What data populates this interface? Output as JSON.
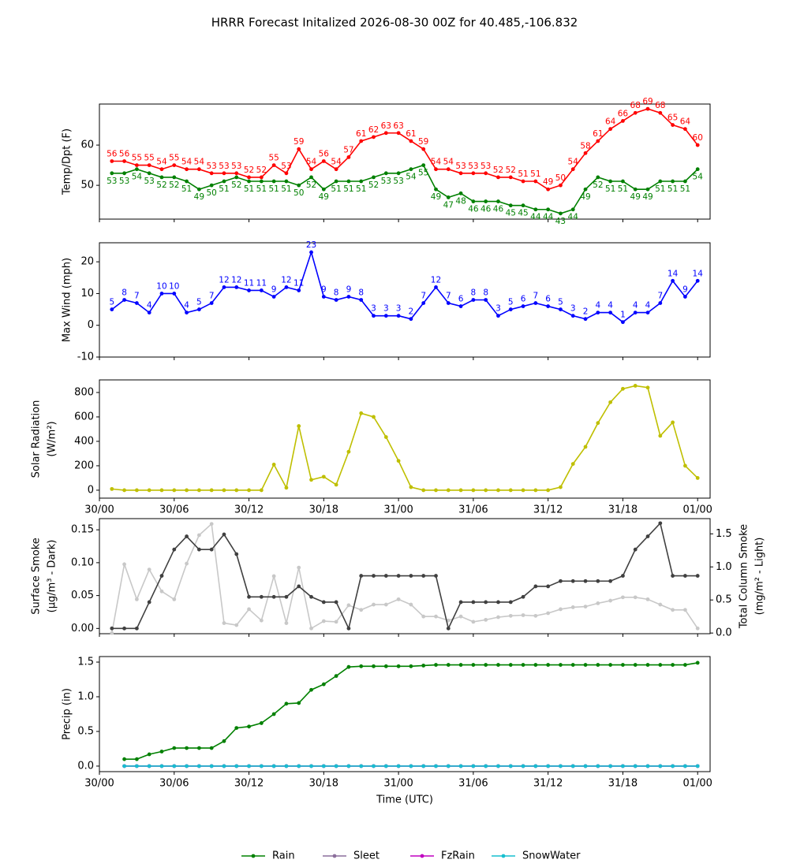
{
  "title": "HRRR Forecast Initalized 2026-08-30 00Z for 40.485,-106.832",
  "chart_data": [
    {
      "type": "line",
      "ylabel": [
        "Temp/Dpt (F)"
      ],
      "x": [
        1,
        2,
        3,
        4,
        5,
        6,
        7,
        8,
        9,
        10,
        11,
        12,
        13,
        14,
        15,
        16,
        17,
        18,
        19,
        20,
        21,
        22,
        23,
        24,
        25,
        26,
        27,
        28,
        29,
        30,
        31,
        32,
        33,
        34,
        35,
        36,
        37,
        38,
        39,
        40,
        41,
        42,
        43,
        44,
        45,
        46,
        47,
        48
      ],
      "xlim": [
        0,
        49
      ],
      "xticks": [
        0,
        6,
        12,
        18,
        24,
        30,
        36,
        42,
        48
      ],
      "ylim": [
        41.6,
        70.2
      ],
      "yticks": [
        50,
        60
      ],
      "series": [
        {
          "color": "#ff0000",
          "data_labels": "above",
          "values": [
            56,
            56,
            55,
            55,
            54,
            55,
            54,
            54,
            53,
            53,
            53,
            52,
            52,
            55,
            53,
            59,
            54,
            56,
            54,
            57,
            61,
            62,
            63,
            63,
            61,
            59,
            54,
            54,
            53,
            53,
            53,
            52,
            52,
            51,
            51,
            49,
            50,
            54,
            58,
            61,
            64,
            66,
            68,
            69,
            68,
            65,
            64,
            60
          ]
        },
        {
          "color": "#008000",
          "data_labels": "below",
          "values": [
            53,
            53,
            54,
            53,
            52,
            52,
            51,
            49,
            50,
            51,
            52,
            51,
            51,
            51,
            51,
            50,
            52,
            49,
            51,
            51,
            51,
            52,
            53,
            53,
            54,
            55,
            49,
            47,
            48,
            46,
            46,
            46,
            45,
            45,
            44,
            44,
            43,
            44,
            49,
            52,
            51,
            51,
            49,
            49,
            51,
            51,
            51,
            54
          ]
        }
      ]
    },
    {
      "type": "line",
      "ylabel": [
        "Max Wind (mph)"
      ],
      "x": [
        1,
        2,
        3,
        4,
        5,
        6,
        7,
        8,
        9,
        10,
        11,
        12,
        13,
        14,
        15,
        16,
        17,
        18,
        19,
        20,
        21,
        22,
        23,
        24,
        25,
        26,
        27,
        28,
        29,
        30,
        31,
        32,
        33,
        34,
        35,
        36,
        37,
        38,
        39,
        40,
        41,
        42,
        43,
        44,
        45,
        46,
        47,
        48
      ],
      "xlim": [
        0,
        49
      ],
      "xticks": [
        0,
        6,
        12,
        18,
        24,
        30,
        36,
        42,
        48
      ],
      "ylim": [
        -10,
        26
      ],
      "yticks": [
        -10,
        0,
        10,
        20
      ],
      "series": [
        {
          "color": "#0000ff",
          "data_labels": "above",
          "values": [
            5,
            8,
            7,
            4,
            10,
            10,
            4,
            5,
            7,
            12,
            12,
            11,
            11,
            9,
            12,
            11,
            23,
            9,
            8,
            9,
            8,
            3,
            3,
            3,
            2,
            7,
            12,
            7,
            6,
            8,
            8,
            3,
            5,
            6,
            7,
            6,
            5,
            3,
            2,
            4,
            4,
            1,
            4,
            4,
            7,
            14,
            9,
            14
          ]
        }
      ]
    },
    {
      "type": "line",
      "ylabel": [
        "Solar Radiation",
        "(W/m²)"
      ],
      "x": [
        1,
        2,
        3,
        4,
        5,
        6,
        7,
        8,
        9,
        10,
        11,
        12,
        13,
        14,
        15,
        16,
        17,
        18,
        19,
        20,
        21,
        22,
        23,
        24,
        25,
        26,
        27,
        28,
        29,
        30,
        31,
        32,
        33,
        34,
        35,
        36,
        37,
        38,
        39,
        40,
        41,
        42,
        43,
        44,
        45,
        46,
        47,
        48
      ],
      "xlim": [
        0,
        49
      ],
      "xticks": [
        {
          "value": 0,
          "label": "30/00"
        },
        {
          "value": 6,
          "label": "30/06"
        },
        {
          "value": 12,
          "label": "30/12"
        },
        {
          "value": 18,
          "label": "30/18"
        },
        {
          "value": 24,
          "label": "31/00"
        },
        {
          "value": 30,
          "label": "31/06"
        },
        {
          "value": 36,
          "label": "31/12"
        },
        {
          "value": 42,
          "label": "31/18"
        },
        {
          "value": 48,
          "label": "01/00"
        }
      ],
      "ylim": [
        -65,
        903
      ],
      "yticks": [
        0,
        200,
        400,
        600,
        800
      ],
      "series": [
        {
          "color": "#bfbf00",
          "values": [
            10,
            0,
            0,
            0,
            0,
            0,
            0,
            0,
            0,
            0,
            0,
            0,
            0,
            210,
            20,
            525,
            85,
            110,
            45,
            315,
            630,
            600,
            435,
            240,
            25,
            0,
            0,
            0,
            0,
            0,
            0,
            0,
            0,
            0,
            0,
            0,
            25,
            215,
            355,
            550,
            720,
            830,
            855,
            840,
            445,
            555,
            200,
            100
          ]
        }
      ]
    },
    {
      "type": "line",
      "ylabel": [
        "Surface Smoke",
        "(μg/m³ - Dark)"
      ],
      "y2label": [
        "Total Column Smoke",
        "(mg/m² - Light)"
      ],
      "x": [
        1,
        2,
        3,
        4,
        5,
        6,
        7,
        8,
        9,
        10,
        11,
        12,
        13,
        14,
        15,
        16,
        17,
        18,
        19,
        20,
        21,
        22,
        23,
        24,
        25,
        26,
        27,
        28,
        29,
        30,
        31,
        32,
        33,
        34,
        35,
        36,
        37,
        38,
        39,
        40,
        41,
        42,
        43,
        44,
        45,
        46,
        47,
        48
      ],
      "xlim": [
        0,
        49
      ],
      "xticks": [
        0,
        6,
        12,
        18,
        24,
        30,
        36,
        42,
        48
      ],
      "ylim": [
        -0.008,
        0.167
      ],
      "yticks": [
        {
          "value": 0,
          "label": "0.00"
        },
        {
          "value": 0.05,
          "label": "0.05"
        },
        {
          "value": 0.1,
          "label": "0.10"
        },
        {
          "value": 0.15,
          "label": "0.15"
        }
      ],
      "y2lim": [
        -0.01,
        1.73
      ],
      "y2ticks": [
        {
          "value": 0,
          "label": "0.0"
        },
        {
          "value": 0.5,
          "label": "0.5"
        },
        {
          "value": 1,
          "label": "1.0"
        },
        {
          "value": 1.5,
          "label": "1.5"
        }
      ],
      "series": [
        {
          "color": "#c8c8c8",
          "axis": "y2",
          "values": [
            0,
            1.04,
            0.51,
            0.96,
            0.63,
            0.51,
            1.05,
            1.48,
            1.65,
            0.15,
            0.12,
            0.36,
            0.19,
            0.86,
            0.15,
            0.99,
            0.07,
            0.18,
            0.17,
            0.42,
            0.35,
            0.43,
            0.43,
            0.51,
            0.43,
            0.25,
            0.25,
            0.19,
            0.25,
            0.17,
            0.2,
            0.24,
            0.26,
            0.27,
            0.26,
            0.3,
            0.36,
            0.39,
            0.4,
            0.45,
            0.49,
            0.54,
            0.54,
            0.51,
            0.43,
            0.35,
            0.35,
            0.07
          ]
        },
        {
          "color": "#404040",
          "values": [
            0,
            0,
            0,
            0.04,
            0.08,
            0.12,
            0.14,
            0.12,
            0.12,
            0.143,
            0.113,
            0.048,
            0.048,
            0.048,
            0.048,
            0.064,
            0.048,
            0.04,
            0.04,
            0,
            0.08,
            0.08,
            0.08,
            0.08,
            0.08,
            0.08,
            0.08,
            0,
            0.04,
            0.04,
            0.04,
            0.04,
            0.04,
            0.048,
            0.064,
            0.064,
            0.072,
            0.072,
            0.072,
            0.072,
            0.072,
            0.08,
            0.12,
            0.14,
            0.16,
            0.08,
            0.08,
            0.08
          ]
        }
      ]
    },
    {
      "type": "line",
      "ylabel": [
        "Precip (in)"
      ],
      "xlabel": "Time (UTC)",
      "legend": "figure-bottom",
      "x": [
        1,
        2,
        3,
        4,
        5,
        6,
        7,
        8,
        9,
        10,
        11,
        12,
        13,
        14,
        15,
        16,
        17,
        18,
        19,
        20,
        21,
        22,
        23,
        24,
        25,
        26,
        27,
        28,
        29,
        30,
        31,
        32,
        33,
        34,
        35,
        36,
        37,
        38,
        39,
        40,
        41,
        42,
        43,
        44,
        45,
        46,
        47,
        48
      ],
      "xlim": [
        0,
        49
      ],
      "xticks": [
        {
          "value": 0,
          "label": "30/00"
        },
        {
          "value": 6,
          "label": "30/06"
        },
        {
          "value": 12,
          "label": "30/12"
        },
        {
          "value": 18,
          "label": "30/18"
        },
        {
          "value": 24,
          "label": "31/00"
        },
        {
          "value": 30,
          "label": "31/06"
        },
        {
          "value": 36,
          "label": "31/12"
        },
        {
          "value": 42,
          "label": "31/18"
        },
        {
          "value": 48,
          "label": "01/00"
        }
      ],
      "ylim": [
        -0.08,
        1.58
      ],
      "yticks": [
        {
          "value": 0,
          "label": "0.0"
        },
        {
          "value": 0.5,
          "label": "0.5"
        },
        {
          "value": 1,
          "label": "1.0"
        },
        {
          "value": 1.5,
          "label": "1.5"
        }
      ],
      "series": [
        {
          "name": "Rain",
          "color": "#008000",
          "values": [
            null,
            0.1,
            0.1,
            0.17,
            0.21,
            0.26,
            0.26,
            0.26,
            0.26,
            0.36,
            0.55,
            0.57,
            0.62,
            0.75,
            0.9,
            0.91,
            1.1,
            1.18,
            1.3,
            1.43,
            1.44,
            1.44,
            1.44,
            1.44,
            1.44,
            1.45,
            1.46,
            1.46,
            1.46,
            1.46,
            1.46,
            1.46,
            1.46,
            1.46,
            1.46,
            1.46,
            1.46,
            1.46,
            1.46,
            1.46,
            1.46,
            1.46,
            1.46,
            1.46,
            1.46,
            1.46,
            1.46,
            1.49
          ]
        },
        {
          "name": "Sleet",
          "color": "#8c6f9c",
          "values": [
            null,
            0,
            0,
            0,
            0,
            0,
            0,
            0,
            0,
            0,
            0,
            0,
            0,
            0,
            0,
            0,
            0,
            0,
            0,
            0,
            0,
            0,
            0,
            0,
            0,
            0,
            0,
            0,
            0,
            0,
            0,
            0,
            0,
            0,
            0,
            0,
            0,
            0,
            0,
            0,
            0,
            0,
            0,
            0,
            0,
            0,
            0,
            0
          ]
        },
        {
          "name": "FzRain",
          "color": "#c000c0",
          "values": [
            null,
            0,
            0,
            0,
            0,
            0,
            0,
            0,
            0,
            0,
            0,
            0,
            0,
            0,
            0,
            0,
            0,
            0,
            0,
            0,
            0,
            0,
            0,
            0,
            0,
            0,
            0,
            0,
            0,
            0,
            0,
            0,
            0,
            0,
            0,
            0,
            0,
            0,
            0,
            0,
            0,
            0,
            0,
            0,
            0,
            0,
            0,
            0
          ]
        },
        {
          "name": "SnowWater",
          "color": "#17bfcf",
          "values": [
            null,
            0,
            0,
            0,
            0,
            0,
            0,
            0,
            0,
            0,
            0,
            0,
            0,
            0,
            0,
            0,
            0,
            0,
            0,
            0,
            0,
            0,
            0,
            0,
            0,
            0,
            0,
            0,
            0,
            0,
            0,
            0,
            0,
            0,
            0,
            0,
            0,
            0,
            0,
            0,
            0,
            0,
            0,
            0,
            0,
            0,
            0,
            0
          ]
        }
      ]
    }
  ]
}
